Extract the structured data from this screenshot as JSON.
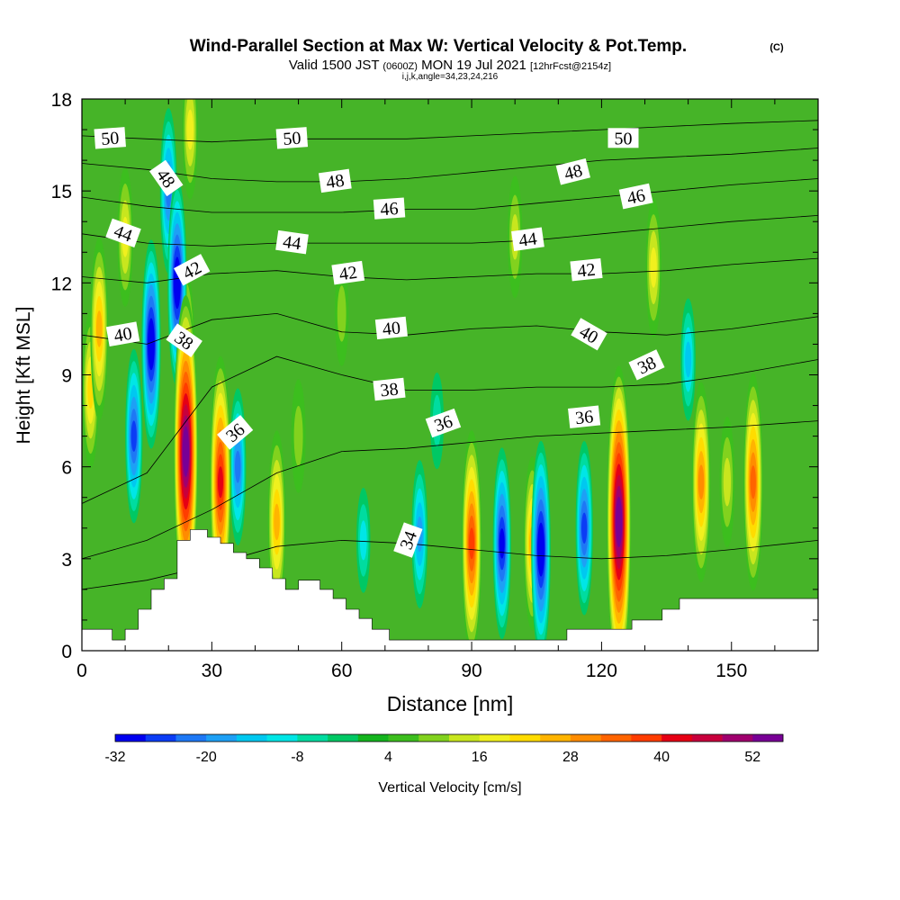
{
  "chart_data": {
    "type": "heatmap",
    "title": "Wind-Parallel Section at Max W: Vertical Velocity & Pot.Temp.",
    "title_mark": "(C)",
    "subtitle": {
      "valid_prefix": "Valid 1500 JST",
      "zulu": "(0600Z)",
      "date": "MON 19 Jul 2021",
      "forecast": "[12hrFcst@2154z]"
    },
    "section_info": "i,j,k,angle=34,23,24,216",
    "xlabel": "Distance [nm]",
    "ylabel": "Height [Kft MSL]",
    "xlim": [
      0,
      170
    ],
    "ylim": [
      0,
      18
    ],
    "x_ticks": [
      0,
      30,
      60,
      90,
      120,
      150
    ],
    "y_ticks": [
      0,
      3,
      6,
      9,
      12,
      15,
      18
    ],
    "colorbar": {
      "label": "Vertical Velocity [cm/s]",
      "min": -32,
      "max": 56,
      "step": 4,
      "tick_labels": [
        -32,
        -20,
        -8,
        4,
        16,
        28,
        40,
        52
      ],
      "colors": [
        "#0000f0",
        "#0b3cf5",
        "#1e78f5",
        "#1ea0f5",
        "#00c8f0",
        "#00e6e6",
        "#00dca0",
        "#00c864",
        "#14b41e",
        "#3cbe1e",
        "#82d21e",
        "#c8e61e",
        "#f0f01e",
        "#ffdc00",
        "#ffb400",
        "#ff8c00",
        "#ff6400",
        "#ff3c00",
        "#e60014",
        "#c8003c",
        "#a0006e",
        "#780096"
      ]
    },
    "vertical_velocity_cells": [
      {
        "x": 4,
        "z": 10.5,
        "w": 24
      },
      {
        "x": 2,
        "z": 8.5,
        "w": 18
      },
      {
        "x": 10,
        "z": 13.5,
        "w": 14
      },
      {
        "x": 16,
        "z": 10,
        "w": -30
      },
      {
        "x": 12,
        "z": 7,
        "w": -22
      },
      {
        "x": 22,
        "z": 12,
        "w": -30
      },
      {
        "x": 20,
        "z": 15,
        "w": -20
      },
      {
        "x": 24,
        "z": 6.5,
        "w": 54
      },
      {
        "x": 24,
        "z": 9.2,
        "w": 28
      },
      {
        "x": 32,
        "z": 5.5,
        "w": 40
      },
      {
        "x": 36,
        "z": 6,
        "w": -18
      },
      {
        "x": 45,
        "z": 4.2,
        "w": 24
      },
      {
        "x": 50,
        "z": 7,
        "w": 8
      },
      {
        "x": 65,
        "z": 3.6,
        "w": -6
      },
      {
        "x": 78,
        "z": 3.8,
        "w": -16
      },
      {
        "x": 82,
        "z": 7.5,
        "w": -4
      },
      {
        "x": 90,
        "z": 3.5,
        "w": 34
      },
      {
        "x": 97,
        "z": 3.5,
        "w": -26
      },
      {
        "x": 104,
        "z": 3.5,
        "w": 22
      },
      {
        "x": 106,
        "z": 3.3,
        "w": -32
      },
      {
        "x": 116,
        "z": 4,
        "w": -22
      },
      {
        "x": 124,
        "z": 4.2,
        "w": 54
      },
      {
        "x": 132,
        "z": 12.5,
        "w": 14
      },
      {
        "x": 143,
        "z": 5.5,
        "w": 28
      },
      {
        "x": 149,
        "z": 5.5,
        "w": 12
      },
      {
        "x": 155,
        "z": 5.5,
        "w": 32
      },
      {
        "x": 100,
        "z": 13.5,
        "w": 10
      },
      {
        "x": 25,
        "z": 17,
        "w": 14
      },
      {
        "x": 60,
        "z": 11,
        "w": 6
      },
      {
        "x": 140,
        "z": 9.5,
        "w": -10
      }
    ],
    "terrain_kft": [
      [
        0,
        0.7
      ],
      [
        7,
        0.7
      ],
      [
        7,
        0.35
      ],
      [
        10,
        0.35
      ],
      [
        10,
        0.7
      ],
      [
        13,
        0.7
      ],
      [
        13,
        1.35
      ],
      [
        16,
        1.35
      ],
      [
        16,
        2.0
      ],
      [
        19,
        2.0
      ],
      [
        19,
        2.35
      ],
      [
        22,
        2.35
      ],
      [
        22,
        3.6
      ],
      [
        25,
        3.6
      ],
      [
        25,
        3.95
      ],
      [
        29,
        3.95
      ],
      [
        29,
        3.7
      ],
      [
        32,
        3.7
      ],
      [
        32,
        3.5
      ],
      [
        35,
        3.5
      ],
      [
        35,
        3.2
      ],
      [
        38,
        3.2
      ],
      [
        38,
        3.0
      ],
      [
        41,
        3.0
      ],
      [
        41,
        2.7
      ],
      [
        44,
        2.7
      ],
      [
        44,
        2.35
      ],
      [
        47,
        2.35
      ],
      [
        47,
        2.0
      ],
      [
        50,
        2.0
      ],
      [
        50,
        2.3
      ],
      [
        55,
        2.3
      ],
      [
        55,
        2.0
      ],
      [
        58,
        2.0
      ],
      [
        58,
        1.7
      ],
      [
        61,
        1.7
      ],
      [
        61,
        1.35
      ],
      [
        64,
        1.35
      ],
      [
        64,
        1.05
      ],
      [
        67,
        1.05
      ],
      [
        67,
        0.7
      ],
      [
        71,
        0.7
      ],
      [
        71,
        0.35
      ],
      [
        84,
        0.35
      ],
      [
        84,
        0.35
      ],
      [
        112,
        0.35
      ],
      [
        112,
        0.7
      ],
      [
        127,
        0.7
      ],
      [
        127,
        1.0
      ],
      [
        134,
        1.0
      ],
      [
        134,
        1.35
      ],
      [
        138,
        1.35
      ],
      [
        138,
        1.7
      ],
      [
        170,
        1.7
      ]
    ],
    "theta_contours": [
      {
        "value": 34,
        "z": [
          2.0,
          2.3,
          2.8,
          3.4,
          3.6,
          3.5,
          3.3,
          3.1,
          3.0,
          3.1,
          3.3,
          3.6
        ]
      },
      {
        "value": 36,
        "z": [
          3.0,
          3.6,
          4.6,
          5.8,
          6.5,
          6.6,
          6.8,
          7.0,
          7.1,
          7.2,
          7.3,
          7.5
        ]
      },
      {
        "value": 38,
        "z": [
          4.8,
          5.8,
          8.6,
          9.6,
          9.0,
          8.5,
          8.5,
          8.6,
          8.6,
          8.7,
          9.0,
          9.5
        ]
      },
      {
        "value": 40,
        "z": [
          10.3,
          10.0,
          10.8,
          11.0,
          10.4,
          10.3,
          10.5,
          10.6,
          10.4,
          10.3,
          10.5,
          10.9
        ]
      },
      {
        "value": 42,
        "z": [
          12.2,
          12.0,
          12.3,
          12.4,
          12.2,
          12.1,
          12.2,
          12.3,
          12.3,
          12.4,
          12.6,
          12.8
        ]
      },
      {
        "value": 44,
        "z": [
          13.6,
          13.3,
          13.2,
          13.3,
          13.3,
          13.3,
          13.3,
          13.4,
          13.6,
          13.8,
          14.0,
          14.2
        ]
      },
      {
        "value": 46,
        "z": [
          14.8,
          14.5,
          14.3,
          14.3,
          14.3,
          14.4,
          14.4,
          14.6,
          14.8,
          15.0,
          15.2,
          15.4
        ]
      },
      {
        "value": 48,
        "z": [
          15.9,
          15.7,
          15.4,
          15.3,
          15.3,
          15.4,
          15.6,
          15.8,
          16.0,
          16.1,
          16.2,
          16.4
        ]
      },
      {
        "value": 50,
        "z": [
          16.8,
          16.7,
          16.6,
          16.7,
          16.7,
          16.7,
          16.8,
          16.9,
          17.0,
          17.1,
          17.2,
          17.3
        ]
      }
    ],
    "theta_x": [
      0,
      15,
      30,
      45,
      60,
      75,
      90,
      105,
      120,
      135,
      150,
      170
    ],
    "contour_labels": [
      {
        "text": "50",
        "x": 6.5,
        "z": 16.7,
        "rot": -4
      },
      {
        "text": "50",
        "x": 48.5,
        "z": 16.7,
        "rot": -4
      },
      {
        "text": "50",
        "x": 125,
        "z": 16.7,
        "rot": 0
      },
      {
        "text": "48",
        "x": 19.3,
        "z": 15.4,
        "rot": 55
      },
      {
        "text": "48",
        "x": 58.5,
        "z": 15.3,
        "rot": -8
      },
      {
        "text": "48",
        "x": 113.5,
        "z": 15.6,
        "rot": -14
      },
      {
        "text": "46",
        "x": 71,
        "z": 14.4,
        "rot": -4
      },
      {
        "text": "46",
        "x": 128,
        "z": 14.8,
        "rot": -12
      },
      {
        "text": "44",
        "x": 9.5,
        "z": 13.6,
        "rot": 20
      },
      {
        "text": "44",
        "x": 48.5,
        "z": 13.3,
        "rot": 8
      },
      {
        "text": "44",
        "x": 103,
        "z": 13.4,
        "rot": -8
      },
      {
        "text": "42",
        "x": 25.5,
        "z": 12.4,
        "rot": -28
      },
      {
        "text": "42",
        "x": 61.5,
        "z": 12.3,
        "rot": -8
      },
      {
        "text": "42",
        "x": 116.5,
        "z": 12.4,
        "rot": -6
      },
      {
        "text": "40",
        "x": 9.5,
        "z": 10.3,
        "rot": -10
      },
      {
        "text": "40",
        "x": 71.5,
        "z": 10.5,
        "rot": -6
      },
      {
        "text": "40",
        "x": 117,
        "z": 10.3,
        "rot": 30
      },
      {
        "text": "38",
        "x": 23.5,
        "z": 10.1,
        "rot": 35
      },
      {
        "text": "38",
        "x": 71,
        "z": 8.5,
        "rot": -6
      },
      {
        "text": "38",
        "x": 130.5,
        "z": 9.3,
        "rot": -25
      },
      {
        "text": "36",
        "x": 35.5,
        "z": 7.1,
        "rot": -40
      },
      {
        "text": "36",
        "x": 83.5,
        "z": 7.4,
        "rot": -20
      },
      {
        "text": "36",
        "x": 116,
        "z": 7.6,
        "rot": -6
      },
      {
        "text": "34",
        "x": 75.5,
        "z": 3.6,
        "rot": -70
      }
    ]
  }
}
